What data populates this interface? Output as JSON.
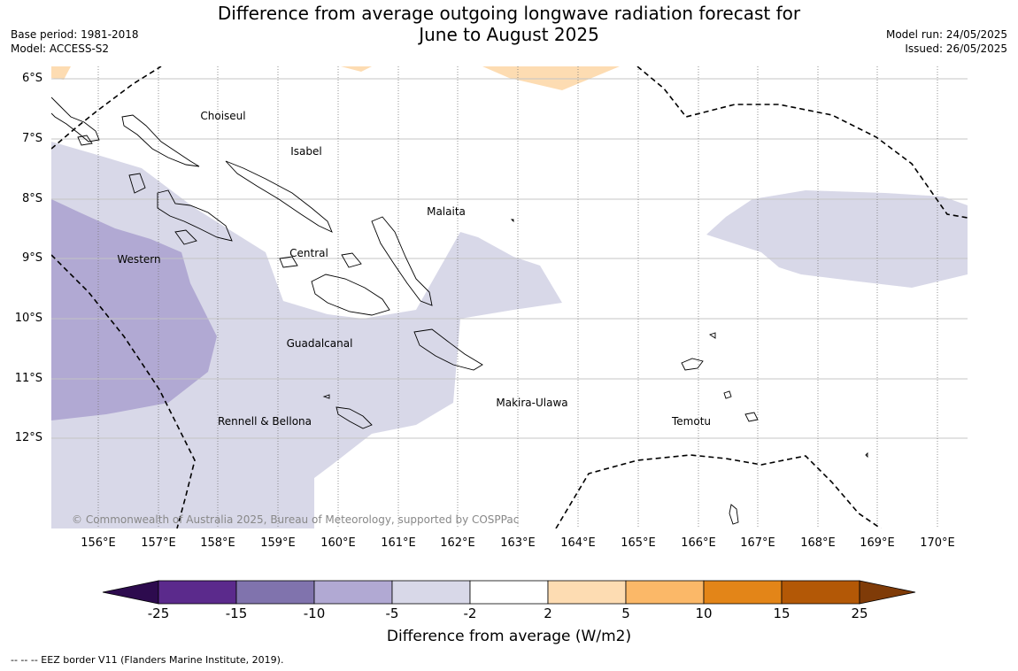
{
  "header": {
    "title_line1": "Difference from average outgoing longwave radiation forecast for",
    "title_line2": "June to August 2025",
    "base_period": "Base period: 1981-2018",
    "model": "Model: ACCESS-S2",
    "model_run": "Model run: 24/05/2025",
    "issued": "Issued: 26/05/2025"
  },
  "map": {
    "lat_labels": [
      "6°S",
      "7°S",
      "8°S",
      "9°S",
      "10°S",
      "11°S",
      "12°S"
    ],
    "lon_labels": [
      "156°E",
      "157°E",
      "158°E",
      "159°E",
      "160°E",
      "161°E",
      "162°E",
      "163°E",
      "164°E",
      "165°E",
      "166°E",
      "167°E",
      "168°E",
      "169°E",
      "170°E"
    ],
    "places": [
      "Choiseul",
      "Isabel",
      "Malaita",
      "Central",
      "Western",
      "Guadalcanal",
      "Makira-Ulawa",
      "Rennell & Bellona",
      "Temotu"
    ],
    "copyright": "© Commonwealth of Australia 2025, Bureau of Meteorology, supported by COSPPac"
  },
  "colorbar": {
    "ticks": [
      "-25",
      "-15",
      "-10",
      "-5",
      "-2",
      "2",
      "5",
      "10",
      "15",
      "25"
    ],
    "colors": [
      "#2d0b4e",
      "#5b2a8c",
      "#8073ad",
      "#b1a9d3",
      "#d8d8e8",
      "#ffffff",
      "#fddcb2",
      "#fbb868",
      "#e38518",
      "#b35806",
      "#7f3b08"
    ],
    "label": "Difference from average (W/m2)"
  },
  "footnote": "--  --  -- EEZ border V11 (Flanders Marine Institute, 2019)."
}
